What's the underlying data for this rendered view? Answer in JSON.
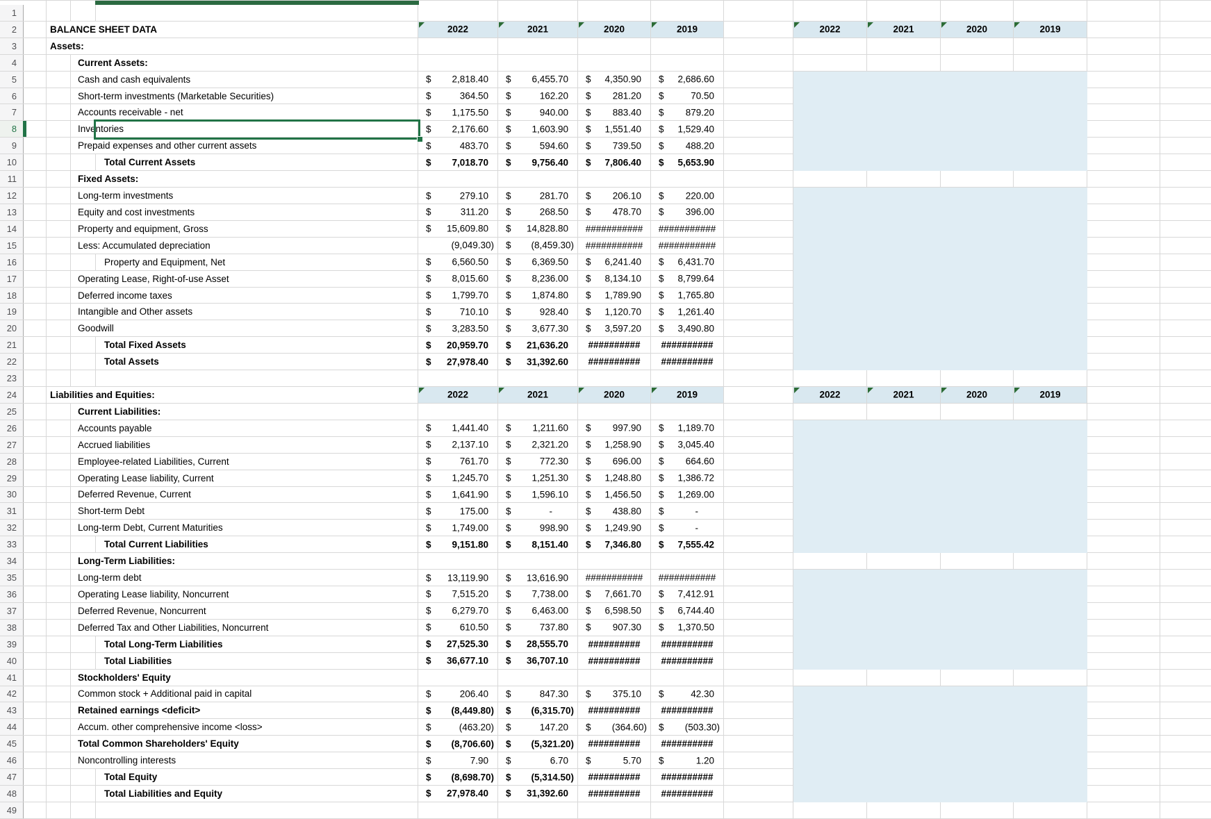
{
  "app": {
    "kind": "spreadsheet-worksheet",
    "title": "BALANCE SHEET DATA"
  },
  "colors": {
    "header_fill": "#d9e8f0",
    "block_fill": "#e0edf4",
    "selection_green": "#217346",
    "flag_green": "#2c6b35",
    "gridline": "#d8d8d8"
  },
  "years": [
    "2022",
    "2021",
    "2020",
    "2019"
  ],
  "selection": {
    "active_row": 8,
    "active_cell_text": "Inventories"
  },
  "shaded_blocks": [
    [
      5,
      10
    ],
    [
      12,
      22
    ],
    [
      26,
      33
    ],
    [
      35,
      40
    ],
    [
      42,
      48
    ]
  ],
  "rows": [
    {
      "n": 1
    },
    {
      "n": 2,
      "label": "BALANCE SHEET DATA",
      "indent": 1,
      "bold": true,
      "year_headers": true
    },
    {
      "n": 3,
      "label": "Assets:",
      "indent": 1,
      "bold": true
    },
    {
      "n": 4,
      "label": "Current Assets:",
      "indent": 2,
      "bold": true
    },
    {
      "n": 5,
      "label": "Cash and cash equivalents",
      "indent": 2,
      "cells": [
        {
          "d": "$",
          "v": "2,818.40"
        },
        {
          "d": "$",
          "v": "6,455.70"
        },
        {
          "d": "$",
          "v": "4,350.90"
        },
        {
          "d": "$",
          "v": "2,686.60"
        }
      ]
    },
    {
      "n": 6,
      "label": "Short-term investments (Marketable Securities)",
      "indent": 2,
      "cells": [
        {
          "d": "$",
          "v": "364.50"
        },
        {
          "d": "$",
          "v": "162.20"
        },
        {
          "d": "$",
          "v": "281.20"
        },
        {
          "d": "$",
          "v": "70.50"
        }
      ]
    },
    {
      "n": 7,
      "label": "Accounts receivable - net",
      "indent": 2,
      "cells": [
        {
          "d": "$",
          "v": "1,175.50"
        },
        {
          "d": "$",
          "v": "940.00"
        },
        {
          "d": "$",
          "v": "883.40"
        },
        {
          "d": "$",
          "v": "879.20"
        }
      ]
    },
    {
      "n": 8,
      "label": "Inventories",
      "indent": 2,
      "selected": true,
      "cells": [
        {
          "d": "$",
          "v": "2,176.60"
        },
        {
          "d": "$",
          "v": "1,603.90"
        },
        {
          "d": "$",
          "v": "1,551.40"
        },
        {
          "d": "$",
          "v": "1,529.40"
        }
      ]
    },
    {
      "n": 9,
      "label": "Prepaid expenses and other current assets",
      "indent": 2,
      "cells": [
        {
          "d": "$",
          "v": "483.70"
        },
        {
          "d": "$",
          "v": "594.60"
        },
        {
          "d": "$",
          "v": "739.50"
        },
        {
          "d": "$",
          "v": "488.20"
        }
      ]
    },
    {
      "n": 10,
      "label": "Total Current Assets",
      "indent": 3,
      "bold": true,
      "vbold": true,
      "cells": [
        {
          "d": "$",
          "v": "7,018.70"
        },
        {
          "d": "$",
          "v": "9,756.40"
        },
        {
          "d": "$",
          "v": "7,806.40"
        },
        {
          "d": "$",
          "v": "5,653.90"
        }
      ]
    },
    {
      "n": 11,
      "label": "Fixed Assets:",
      "indent": 2,
      "bold": true
    },
    {
      "n": 12,
      "label": "Long-term investments",
      "indent": 2,
      "cells": [
        {
          "d": "$",
          "v": "279.10"
        },
        {
          "d": "$",
          "v": "281.70"
        },
        {
          "d": "$",
          "v": "206.10"
        },
        {
          "d": "$",
          "v": "220.00"
        }
      ]
    },
    {
      "n": 13,
      "label": "Equity and cost investments",
      "indent": 2,
      "cells": [
        {
          "d": "$",
          "v": "311.20"
        },
        {
          "d": "$",
          "v": "268.50"
        },
        {
          "d": "$",
          "v": "478.70"
        },
        {
          "d": "$",
          "v": "396.00"
        }
      ]
    },
    {
      "n": 14,
      "label": "Property and equipment, Gross",
      "indent": 2,
      "cells": [
        {
          "d": "$",
          "v": "15,609.80"
        },
        {
          "d": "$",
          "v": "14,828.80"
        },
        {
          "v": "###########"
        },
        {
          "v": "###########"
        }
      ]
    },
    {
      "n": 15,
      "label": "Less: Accumulated depreciation",
      "indent": 2,
      "cells": [
        {
          "v": "(9,049.30)"
        },
        {
          "d": "$",
          "v": "(8,459.30)"
        },
        {
          "v": "###########"
        },
        {
          "v": "###########"
        }
      ]
    },
    {
      "n": 16,
      "label": "Property and Equipment, Net",
      "indent": 3,
      "cells": [
        {
          "d": "$",
          "v": "6,560.50"
        },
        {
          "d": "$",
          "v": "6,369.50"
        },
        {
          "d": "$",
          "v": "6,241.40"
        },
        {
          "d": "$",
          "v": "6,431.70"
        }
      ]
    },
    {
      "n": 17,
      "label": "Operating Lease, Right-of-use Asset",
      "indent": 2,
      "cells": [
        {
          "d": "$",
          "v": "8,015.60"
        },
        {
          "d": "$",
          "v": "8,236.00"
        },
        {
          "d": "$",
          "v": "8,134.10"
        },
        {
          "d": "$",
          "v": "8,799.64"
        }
      ]
    },
    {
      "n": 18,
      "label": "Deferred income taxes",
      "indent": 2,
      "cells": [
        {
          "d": "$",
          "v": "1,799.70"
        },
        {
          "d": "$",
          "v": "1,874.80"
        },
        {
          "d": "$",
          "v": "1,789.90"
        },
        {
          "d": "$",
          "v": "1,765.80"
        }
      ]
    },
    {
      "n": 19,
      "label": "Intangible and Other assets",
      "indent": 2,
      "cells": [
        {
          "d": "$",
          "v": "710.10"
        },
        {
          "d": "$",
          "v": "928.40"
        },
        {
          "d": "$",
          "v": "1,120.70"
        },
        {
          "d": "$",
          "v": "1,261.40"
        }
      ]
    },
    {
      "n": 20,
      "label": "Goodwill",
      "indent": 2,
      "cells": [
        {
          "d": "$",
          "v": "3,283.50"
        },
        {
          "d": "$",
          "v": "3,677.30"
        },
        {
          "d": "$",
          "v": "3,597.20"
        },
        {
          "d": "$",
          "v": "3,490.80"
        }
      ]
    },
    {
      "n": 21,
      "label": "Total Fixed Assets",
      "indent": 3,
      "bold": true,
      "vbold": true,
      "cells": [
        {
          "d": "$",
          "v": "20,959.70"
        },
        {
          "d": "$",
          "v": "21,636.20"
        },
        {
          "v": "##########"
        },
        {
          "v": "##########"
        }
      ]
    },
    {
      "n": 22,
      "label": "Total Assets",
      "indent": 3,
      "bold": true,
      "vbold": true,
      "cells": [
        {
          "d": "$",
          "v": "27,978.40"
        },
        {
          "d": "$",
          "v": "31,392.60"
        },
        {
          "v": "##########"
        },
        {
          "v": "##########"
        }
      ]
    },
    {
      "n": 23
    },
    {
      "n": 24,
      "label": "Liabilities and Equities:",
      "indent": 1,
      "bold": true,
      "year_headers": true
    },
    {
      "n": 25,
      "label": "Current Liabilities:",
      "indent": 2,
      "bold": true
    },
    {
      "n": 26,
      "label": "Accounts payable",
      "indent": 2,
      "cells": [
        {
          "d": "$",
          "v": "1,441.40"
        },
        {
          "d": "$",
          "v": "1,211.60"
        },
        {
          "d": "$",
          "v": "997.90"
        },
        {
          "d": "$",
          "v": "1,189.70"
        }
      ]
    },
    {
      "n": 27,
      "label": "Accrued liabilities",
      "indent": 2,
      "cells": [
        {
          "d": "$",
          "v": "2,137.10"
        },
        {
          "d": "$",
          "v": "2,321.20"
        },
        {
          "d": "$",
          "v": "1,258.90"
        },
        {
          "d": "$",
          "v": "3,045.40"
        }
      ]
    },
    {
      "n": 28,
      "label": "Employee-related Liabilities, Current",
      "indent": 2,
      "cells": [
        {
          "d": "$",
          "v": "761.70"
        },
        {
          "d": "$",
          "v": "772.30"
        },
        {
          "d": "$",
          "v": "696.00"
        },
        {
          "d": "$",
          "v": "664.60"
        }
      ]
    },
    {
      "n": 29,
      "label": "Operating Lease liability, Current",
      "indent": 2,
      "cells": [
        {
          "d": "$",
          "v": "1,245.70"
        },
        {
          "d": "$",
          "v": "1,251.30"
        },
        {
          "d": "$",
          "v": "1,248.80"
        },
        {
          "d": "$",
          "v": "1,386.72"
        }
      ]
    },
    {
      "n": 30,
      "label": "Deferred Revenue, Current",
      "indent": 2,
      "cells": [
        {
          "d": "$",
          "v": "1,641.90"
        },
        {
          "d": "$",
          "v": "1,596.10"
        },
        {
          "d": "$",
          "v": "1,456.50"
        },
        {
          "d": "$",
          "v": "1,269.00"
        }
      ]
    },
    {
      "n": 31,
      "label": "Short-term Debt",
      "indent": 2,
      "cells": [
        {
          "d": "$",
          "v": "175.00"
        },
        {
          "d": "$",
          "v": "-"
        },
        {
          "d": "$",
          "v": "438.80"
        },
        {
          "d": "$",
          "v": "-"
        }
      ]
    },
    {
      "n": 32,
      "label": "Long-term Debt, Current Maturities",
      "indent": 2,
      "cells": [
        {
          "d": "$",
          "v": "1,749.00"
        },
        {
          "d": "$",
          "v": "998.90"
        },
        {
          "d": "$",
          "v": "1,249.90"
        },
        {
          "d": "$",
          "v": "-"
        }
      ]
    },
    {
      "n": 33,
      "label": "Total Current Liabilities",
      "indent": 3,
      "bold": true,
      "vbold": true,
      "cells": [
        {
          "d": "$",
          "v": "9,151.80"
        },
        {
          "d": "$",
          "v": "8,151.40"
        },
        {
          "d": "$",
          "v": "7,346.80"
        },
        {
          "d": "$",
          "v": "7,555.42"
        }
      ]
    },
    {
      "n": 34,
      "label": "Long-Term Liabilities:",
      "indent": 2,
      "bold": true
    },
    {
      "n": 35,
      "label": "Long-term debt",
      "indent": 2,
      "cells": [
        {
          "d": "$",
          "v": "13,119.90"
        },
        {
          "d": "$",
          "v": "13,616.90"
        },
        {
          "v": "###########"
        },
        {
          "v": "###########"
        }
      ]
    },
    {
      "n": 36,
      "label": "Operating Lease liability, Noncurrent",
      "indent": 2,
      "cells": [
        {
          "d": "$",
          "v": "7,515.20"
        },
        {
          "d": "$",
          "v": "7,738.00"
        },
        {
          "d": "$",
          "v": "7,661.70"
        },
        {
          "d": "$",
          "v": "7,412.91"
        }
      ]
    },
    {
      "n": 37,
      "label": "Deferred Revenue, Noncurrent",
      "indent": 2,
      "cells": [
        {
          "d": "$",
          "v": "6,279.70"
        },
        {
          "d": "$",
          "v": "6,463.00"
        },
        {
          "d": "$",
          "v": "6,598.50"
        },
        {
          "d": "$",
          "v": "6,744.40"
        }
      ]
    },
    {
      "n": 38,
      "label": "Deferred Tax and Other Liabilities, Noncurrent",
      "indent": 2,
      "cells": [
        {
          "d": "$",
          "v": "610.50"
        },
        {
          "d": "$",
          "v": "737.80"
        },
        {
          "d": "$",
          "v": "907.30"
        },
        {
          "d": "$",
          "v": "1,370.50"
        }
      ]
    },
    {
      "n": 39,
      "label": "Total Long-Term Liabilities",
      "indent": 3,
      "bold": true,
      "vbold": true,
      "cells": [
        {
          "d": "$",
          "v": "27,525.30"
        },
        {
          "d": "$",
          "v": "28,555.70"
        },
        {
          "v": "##########"
        },
        {
          "v": "##########"
        }
      ]
    },
    {
      "n": 40,
      "label": "Total Liabilities",
      "indent": 3,
      "bold": true,
      "vbold": true,
      "cells": [
        {
          "d": "$",
          "v": "36,677.10"
        },
        {
          "d": "$",
          "v": "36,707.10"
        },
        {
          "v": "##########"
        },
        {
          "v": "##########"
        }
      ]
    },
    {
      "n": 41,
      "label": "Stockholders' Equity",
      "indent": 2,
      "bold": true
    },
    {
      "n": 42,
      "label": "Common stock + Additional paid in capital",
      "indent": 2,
      "cells": [
        {
          "d": "$",
          "v": "206.40"
        },
        {
          "d": "$",
          "v": "847.30"
        },
        {
          "d": "$",
          "v": "375.10"
        },
        {
          "d": "$",
          "v": "42.30"
        }
      ]
    },
    {
      "n": 43,
      "label": "Retained earnings <deficit>",
      "indent": 2,
      "bold": true,
      "vbold": true,
      "cells": [
        {
          "d": "$",
          "v": "(8,449.80)"
        },
        {
          "d": "$",
          "v": "(6,315.70)"
        },
        {
          "v": "##########"
        },
        {
          "v": "##########"
        }
      ]
    },
    {
      "n": 44,
      "label": "Accum. other comprehensive income <loss>",
      "indent": 2,
      "cells": [
        {
          "d": "$",
          "v": "(463.20)"
        },
        {
          "d": "$",
          "v": "147.20"
        },
        {
          "d": "$",
          "v": "(364.60)"
        },
        {
          "d": "$",
          "v": "(503.30)"
        }
      ]
    },
    {
      "n": 45,
      "label": "Total Common Shareholders' Equity",
      "indent": 2,
      "bold": true,
      "vbold": true,
      "cells": [
        {
          "d": "$",
          "v": "(8,706.60)"
        },
        {
          "d": "$",
          "v": "(5,321.20)"
        },
        {
          "v": "##########"
        },
        {
          "v": "##########"
        }
      ]
    },
    {
      "n": 46,
      "label": "Noncontrolling interests",
      "indent": 2,
      "cells": [
        {
          "d": "$",
          "v": "7.90"
        },
        {
          "d": "$",
          "v": "6.70"
        },
        {
          "d": "$",
          "v": "5.70"
        },
        {
          "d": "$",
          "v": "1.20"
        }
      ]
    },
    {
      "n": 47,
      "label": "Total Equity",
      "indent": 3,
      "bold": true,
      "vbold": true,
      "cells": [
        {
          "d": "$",
          "v": "(8,698.70)"
        },
        {
          "d": "$",
          "v": "(5,314.50)"
        },
        {
          "v": "##########"
        },
        {
          "v": "##########"
        }
      ]
    },
    {
      "n": 48,
      "label": "Total Liabilities and Equity",
      "indent": 3,
      "bold": true,
      "vbold": true,
      "cells": [
        {
          "d": "$",
          "v": "27,978.40"
        },
        {
          "d": "$",
          "v": "31,392.60"
        },
        {
          "v": "##########"
        },
        {
          "v": "##########"
        }
      ]
    },
    {
      "n": 49
    }
  ]
}
